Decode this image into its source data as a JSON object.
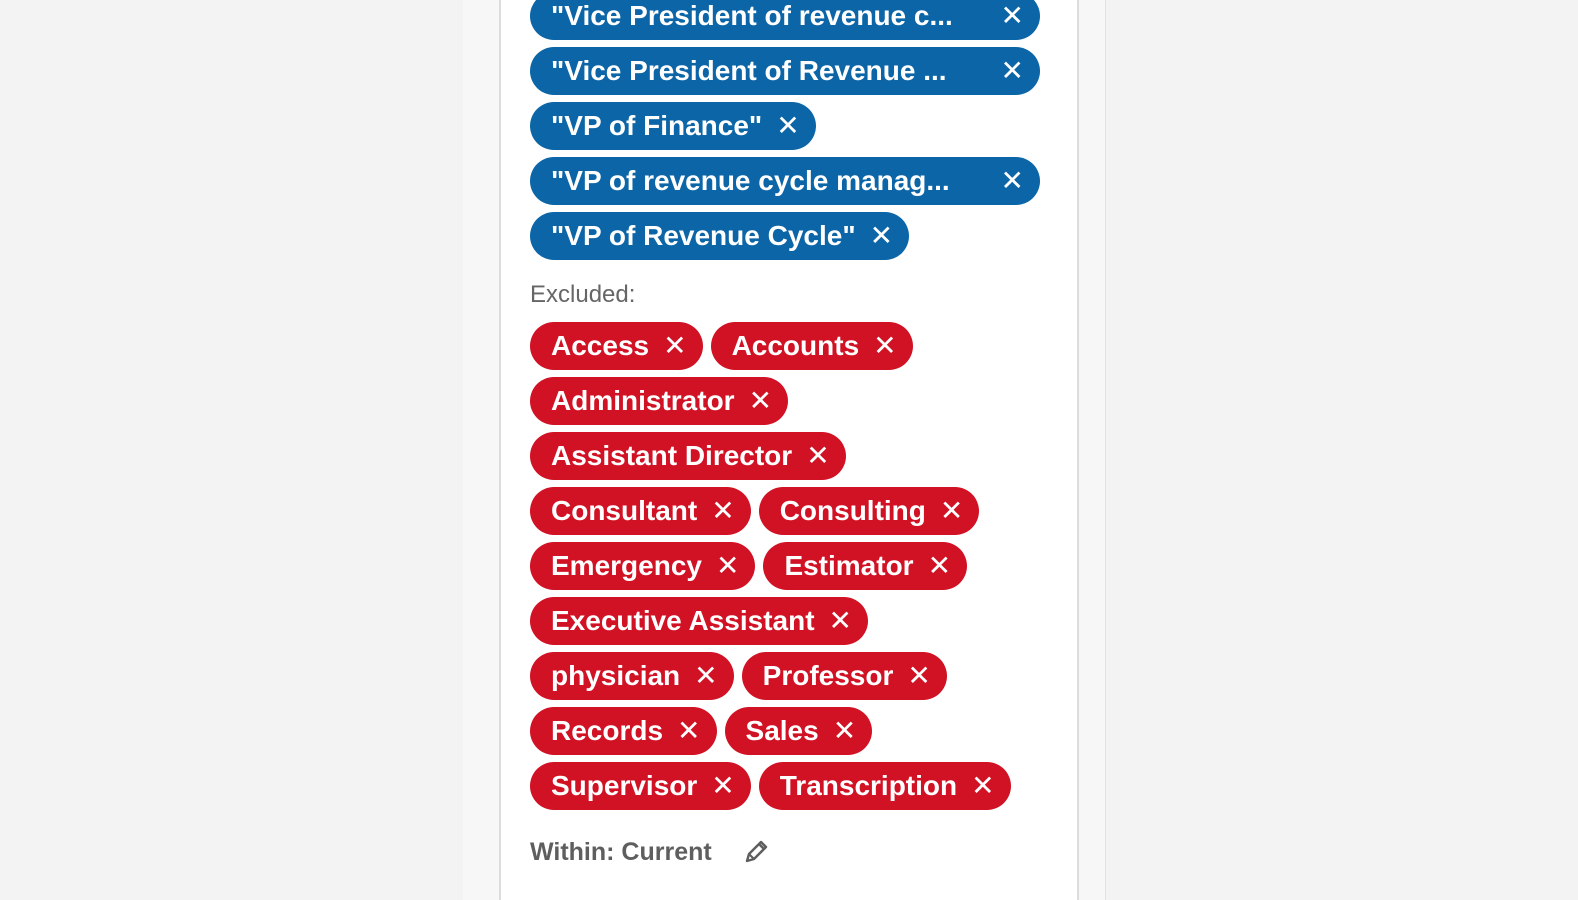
{
  "included": [
    {
      "label": "\"Vice President of revenue c...",
      "wide": true
    },
    {
      "label": "\"Vice President of Revenue ...",
      "wide": true
    },
    {
      "label": "\"VP of Finance\"",
      "wide": false
    },
    {
      "label": "\"VP of revenue cycle manag...",
      "wide": true
    },
    {
      "label": "\"VP of Revenue Cycle\"",
      "wide": false
    }
  ],
  "excluded_heading": "Excluded:",
  "excluded_rows": [
    [
      "Access",
      "Accounts"
    ],
    [
      "Administrator"
    ],
    [
      "Assistant Director"
    ],
    [
      "Consultant",
      "Consulting"
    ],
    [
      "Emergency",
      "Estimator"
    ],
    [
      "Executive Assistant"
    ],
    [
      "physician",
      "Professor"
    ],
    [
      "Records",
      "Sales"
    ],
    [
      "Supervisor",
      "Transcription"
    ]
  ],
  "remove_glyph": "✕",
  "within": {
    "text": "Within: Current",
    "edit_icon": "pencil-icon"
  },
  "colors": {
    "included_pill": "#0b65a7",
    "excluded_pill": "#d11124",
    "card_bg": "#ffffff",
    "page_bg": "#f3f3f3"
  }
}
